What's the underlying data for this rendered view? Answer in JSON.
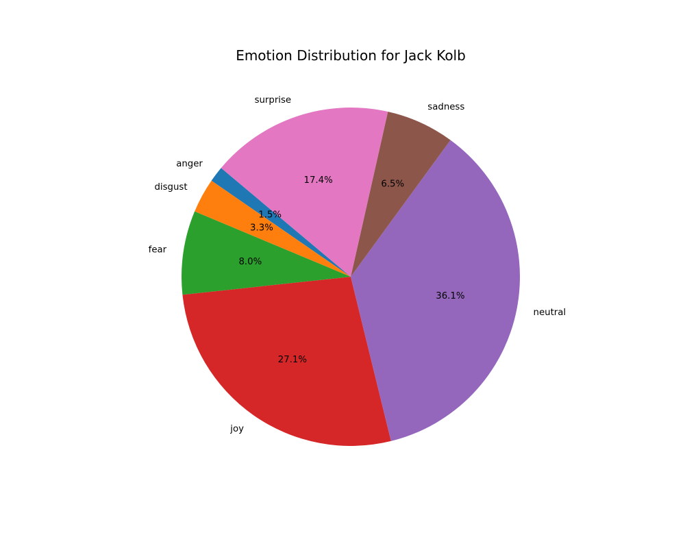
{
  "chart_data": {
    "type": "pie",
    "title": "Emotion Distribution for Jack Kolb",
    "slices": [
      {
        "label": "anger",
        "value": 1.5,
        "pct_label": "1.5%",
        "color": "#1f77b4"
      },
      {
        "label": "disgust",
        "value": 3.3,
        "pct_label": "3.3%",
        "color": "#ff7f0e"
      },
      {
        "label": "fear",
        "value": 8.0,
        "pct_label": "8.0%",
        "color": "#2ca02c"
      },
      {
        "label": "joy",
        "value": 27.1,
        "pct_label": "27.1%",
        "color": "#d62728"
      },
      {
        "label": "neutral",
        "value": 36.1,
        "pct_label": "36.1%",
        "color": "#9467bd"
      },
      {
        "label": "sadness",
        "value": 6.5,
        "pct_label": "6.5%",
        "color": "#8c564b"
      },
      {
        "label": "surprise",
        "value": 17.4,
        "pct_label": "17.4%",
        "color": "#e377c2"
      }
    ],
    "start_angle_deg": 140,
    "direction": "counterclockwise",
    "legend": "none"
  }
}
